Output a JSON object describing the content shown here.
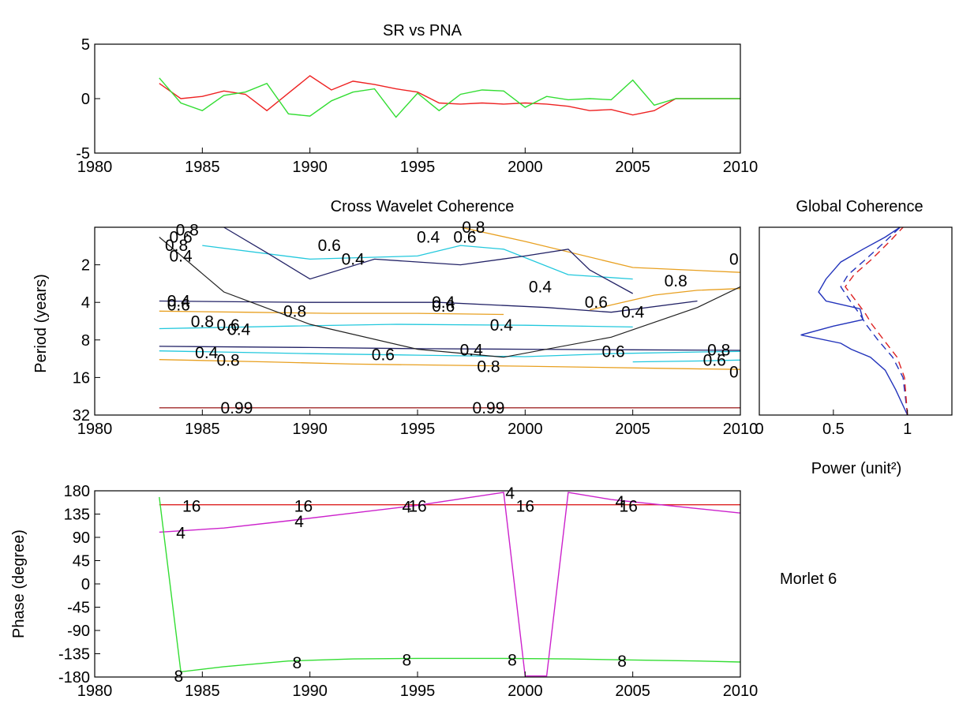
{
  "chart_data": [
    {
      "type": "line",
      "title": "SR vs PNA",
      "xlabel": "",
      "ylabel": "",
      "xlim": [
        1980,
        2010
      ],
      "ylim": [
        -5,
        5
      ],
      "xticks": [
        "1980",
        "1985",
        "1990",
        "1995",
        "2000",
        "2005",
        "2010"
      ],
      "yticks": [
        "-5",
        "0",
        "5"
      ],
      "grid": false,
      "series": [
        {
          "color": "#ee2222",
          "x": [
            1983,
            1984,
            1985,
            1986,
            1987,
            1988,
            1989,
            1990,
            1991,
            1992,
            1993,
            1994,
            1995,
            1996,
            1997,
            1998,
            1999,
            2000,
            2001,
            2002,
            2003,
            2004,
            2005,
            2006,
            2007,
            2008,
            2009,
            2010
          ],
          "y": [
            1.4,
            0.0,
            0.2,
            0.7,
            0.4,
            -1.1,
            0.5,
            2.1,
            0.8,
            1.6,
            1.3,
            0.9,
            0.6,
            -0.4,
            -0.5,
            -0.4,
            -0.5,
            -0.4,
            -0.5,
            -0.7,
            -1.1,
            -1.0,
            -1.5,
            -1.1,
            0.0,
            0.0,
            0.0,
            0.0
          ]
        },
        {
          "color": "#33dd33",
          "x": [
            1983,
            1984,
            1985,
            1986,
            1987,
            1988,
            1989,
            1990,
            1991,
            1992,
            1993,
            1994,
            1995,
            1996,
            1997,
            1998,
            1999,
            2000,
            2001,
            2002,
            2003,
            2004,
            2005,
            2006,
            2007,
            2008,
            2009,
            2010
          ],
          "y": [
            1.9,
            -0.4,
            -1.1,
            0.3,
            0.6,
            1.4,
            -1.4,
            -1.6,
            -0.2,
            0.6,
            0.9,
            -1.7,
            0.5,
            -1.1,
            0.4,
            0.8,
            0.7,
            -0.8,
            0.2,
            -0.1,
            0.0,
            -0.1,
            1.7,
            -0.6,
            0.0,
            0.0,
            0.0,
            0.0
          ]
        }
      ]
    },
    {
      "type": "contour",
      "title": "Cross Wavelet Coherence",
      "xlabel": "",
      "ylabel": "Period (years)",
      "xlim": [
        1980,
        2010
      ],
      "y_scale": "log2",
      "ylim": [
        1,
        32
      ],
      "xticks": [
        "1980",
        "1985",
        "1990",
        "1995",
        "2000",
        "2005",
        "2010"
      ],
      "yticks": [
        "2",
        "4",
        "8",
        "16",
        "32"
      ],
      "cone_of_influence": {
        "x": [
          1983,
          1986,
          1990,
          1995,
          1999,
          2004,
          2008,
          2010
        ],
        "y": [
          1.2,
          3.3,
          6.0,
          9.5,
          11.0,
          7.6,
          4.4,
          3.0
        ]
      },
      "contours": [
        {
          "level": "0.99",
          "color": "#a02828",
          "x": [
            1983,
            2010
          ],
          "y": [
            28,
            28
          ]
        },
        {
          "level": "0.8",
          "color": "#e8a020",
          "x": [
            1983,
            1988,
            1992,
            2000,
            2006,
            2010
          ],
          "y": [
            11.5,
            12.0,
            12.5,
            13.0,
            13.5,
            13.8
          ]
        },
        {
          "level": "0.6",
          "color": "#22c8dd",
          "x": [
            1983,
            1990,
            1995,
            2000,
            2004,
            2008,
            2010
          ],
          "y": [
            9.8,
            10.3,
            10.6,
            10.9,
            10.3,
            10.0,
            9.9
          ]
        },
        {
          "level": "0.4",
          "color": "#222266",
          "x": [
            1983,
            1990,
            1995,
            2000,
            2005,
            2010
          ],
          "y": [
            9.0,
            9.2,
            9.4,
            9.5,
            9.6,
            9.7
          ]
        },
        {
          "level": "0.8",
          "color": "#e8a020",
          "x": [
            1983,
            1987,
            1991,
            1995,
            1999
          ],
          "y": [
            4.7,
            4.8,
            4.9,
            4.9,
            5.0
          ]
        },
        {
          "level": "0.6",
          "color": "#22c8dd",
          "x": [
            1983,
            1989,
            1994,
            2000,
            2005
          ],
          "y": [
            6.5,
            6.2,
            6.0,
            6.1,
            6.3
          ]
        },
        {
          "level": "0.4",
          "color": "#222266",
          "x": [
            1983,
            1990,
            1996,
            2001,
            2004,
            2008
          ],
          "y": [
            3.9,
            4.0,
            4.0,
            4.4,
            4.8,
            3.9
          ]
        },
        {
          "level": "0.6",
          "color": "#22c8dd",
          "x": [
            1985,
            1990,
            1995,
            1997,
            1999,
            2002,
            2005
          ],
          "y": [
            1.4,
            1.8,
            1.7,
            1.4,
            1.5,
            2.4,
            2.6
          ]
        },
        {
          "level": "0.8",
          "color": "#e8a020",
          "x": [
            1997,
            2000,
            2005,
            2010
          ],
          "y": [
            1.0,
            1.3,
            2.1,
            2.3
          ]
        },
        {
          "level": "0.8",
          "color": "#e8a020",
          "x": [
            2003,
            2006,
            2008,
            2010
          ],
          "y": [
            4.6,
            3.5,
            3.2,
            3.1
          ]
        },
        {
          "level": "0.4",
          "color": "#222266",
          "x": [
            1986,
            1988,
            1990,
            1993,
            1997,
            2000,
            2002,
            2003,
            2005
          ],
          "y": [
            1.0,
            1.6,
            2.6,
            1.8,
            2.0,
            1.7,
            1.5,
            2.2,
            3.4
          ]
        },
        {
          "level": "0.6",
          "color": "#22c8dd",
          "x": [
            2005,
            2008,
            2010
          ],
          "y": [
            12.0,
            11.8,
            11.6
          ]
        }
      ],
      "contour_labels": [
        {
          "text": "0.99",
          "x": 1986.6,
          "y": 28
        },
        {
          "text": "0.99",
          "x": 1998.3,
          "y": 28
        },
        {
          "text": "0.8",
          "x": 1986.2,
          "y": 11.6
        },
        {
          "text": "0.8",
          "x": 1998.3,
          "y": 13.1
        },
        {
          "text": "0.6",
          "x": 1993.4,
          "y": 10.5
        },
        {
          "text": "0.6",
          "x": 2004.1,
          "y": 9.9
        },
        {
          "text": "0.6",
          "x": 2008.8,
          "y": 11.6
        },
        {
          "text": "0.8",
          "x": 2009.0,
          "y": 9.6
        },
        {
          "text": "0.4",
          "x": 1985.2,
          "y": 10.1
        },
        {
          "text": "0.4",
          "x": 1997.5,
          "y": 9.6
        },
        {
          "text": "0.4",
          "x": 1998.9,
          "y": 6.1
        },
        {
          "text": "0.8",
          "x": 1985.0,
          "y": 5.7
        },
        {
          "text": "0.6",
          "x": 1986.2,
          "y": 6.1
        },
        {
          "text": "0.4",
          "x": 1986.7,
          "y": 6.6
        },
        {
          "text": "0.8",
          "x": 1989.3,
          "y": 4.7
        },
        {
          "text": "0.4",
          "x": 1983.9,
          "y": 3.9
        },
        {
          "text": "0.6",
          "x": 1983.9,
          "y": 4.2
        },
        {
          "text": "0.4",
          "x": 1996.2,
          "y": 4.0
        },
        {
          "text": "0.6",
          "x": 1996.2,
          "y": 4.3
        },
        {
          "text": "0.6",
          "x": 2003.3,
          "y": 4.0
        },
        {
          "text": "0.4",
          "x": 2005.0,
          "y": 4.8
        },
        {
          "text": "0.4",
          "x": 2000.7,
          "y": 3.0
        },
        {
          "text": "0.8",
          "x": 2007.0,
          "y": 2.7
        },
        {
          "text": "0.4",
          "x": 1992.0,
          "y": 1.8
        },
        {
          "text": "0.6",
          "x": 1990.9,
          "y": 1.4
        },
        {
          "text": "0.4",
          "x": 1995.5,
          "y": 1.2
        },
        {
          "text": "0.6",
          "x": 1997.2,
          "y": 1.2
        },
        {
          "text": "0.8",
          "x": 1997.6,
          "y": 1.0
        },
        {
          "text": "0.8",
          "x": 1983.8,
          "y": 1.4
        },
        {
          "text": "0.6",
          "x": 1984.0,
          "y": 1.2
        },
        {
          "text": "0.4",
          "x": 1984.0,
          "y": 1.7
        },
        {
          "text": "0.8",
          "x": 1984.3,
          "y": 1.05
        },
        {
          "text": "0",
          "x": 2009.7,
          "y": 1.8
        },
        {
          "text": "0",
          "x": 2009.7,
          "y": 14.5
        }
      ]
    },
    {
      "type": "line",
      "title": "Global Coherence",
      "xlabel": "Power (unit²)",
      "ylabel": "",
      "xlim": [
        0,
        1.3
      ],
      "ylim": [
        1,
        32
      ],
      "y_scale": "log2",
      "xticks": [
        "0",
        "0.5",
        "1"
      ],
      "grid": false,
      "series": [
        {
          "color": "#2233bb",
          "dash": "solid",
          "x": [
            1.0,
            0.92,
            0.85,
            0.75,
            0.62,
            0.55,
            0.28,
            0.5,
            0.7,
            0.68,
            0.45,
            0.4,
            0.45,
            0.55,
            0.7,
            0.85,
            0.95
          ],
          "y": [
            32,
            20,
            14,
            11,
            9.5,
            8.5,
            7.3,
            6.2,
            5.5,
            4.5,
            3.9,
            3.3,
            2.6,
            1.9,
            1.5,
            1.2,
            1.0
          ]
        },
        {
          "color": "#2233bb",
          "dash": "dash",
          "x": [
            1.0,
            0.97,
            0.9,
            0.8,
            0.72,
            0.68,
            0.62,
            0.55,
            0.6,
            0.72,
            0.85,
            0.95
          ],
          "y": [
            32,
            16,
            11,
            8,
            6,
            5,
            4,
            3,
            2.4,
            1.8,
            1.3,
            1.0
          ]
        },
        {
          "color": "#dd2222",
          "dash": "dash",
          "x": [
            1.0,
            0.98,
            0.93,
            0.84,
            0.76,
            0.72,
            0.66,
            0.58,
            0.64,
            0.76,
            0.88,
            0.97
          ],
          "y": [
            32,
            16,
            11,
            8,
            6,
            5,
            4,
            3,
            2.4,
            1.8,
            1.3,
            1.0
          ]
        }
      ]
    },
    {
      "type": "line",
      "title": "",
      "xlabel": "",
      "ylabel": "Phase (degree)",
      "xlim": [
        1980,
        2010
      ],
      "ylim": [
        -180,
        180
      ],
      "xticks": [
        "1980",
        "1985",
        "1990",
        "1995",
        "2000",
        "2005",
        "2010"
      ],
      "yticks": [
        "180",
        "135",
        "90",
        "45",
        "0",
        "-45",
        "-90",
        "-135",
        "-180"
      ],
      "grid": false,
      "series": [
        {
          "color": "#dd2222",
          "x": [
            1983,
            2010
          ],
          "y": [
            153,
            153
          ]
        },
        {
          "color": "#cc22cc",
          "x": [
            1983,
            1986,
            1989,
            1992,
            1995,
            1999,
            2000,
            2001,
            2002,
            2004,
            2007,
            2010
          ],
          "y": [
            100,
            108,
            122,
            137,
            152,
            177,
            -178,
            -178,
            177,
            163,
            150,
            137
          ]
        },
        {
          "color": "#33dd33",
          "x": [
            1983,
            1984,
            1986,
            1989,
            1992,
            1995,
            1999,
            2002,
            2005,
            2008,
            2010
          ],
          "y": [
            168,
            -170,
            -160,
            -149,
            -145,
            -144,
            -144,
            -145,
            -147,
            -149,
            -151
          ]
        }
      ],
      "annotations": [
        {
          "text": "16",
          "x": 1984.5,
          "y": 152
        },
        {
          "text": "16",
          "x": 1989.7,
          "y": 152
        },
        {
          "text": "16",
          "x": 1995.0,
          "y": 152
        },
        {
          "text": "16",
          "x": 2000.0,
          "y": 152
        },
        {
          "text": "16",
          "x": 2004.8,
          "y": 152
        },
        {
          "text": "4",
          "x": 1984.0,
          "y": 100
        },
        {
          "text": "4",
          "x": 1989.5,
          "y": 122
        },
        {
          "text": "4",
          "x": 1994.5,
          "y": 150
        },
        {
          "text": "4",
          "x": 1999.3,
          "y": 177
        },
        {
          "text": "4",
          "x": 2004.4,
          "y": 160
        },
        {
          "text": "8",
          "x": 1983.9,
          "y": -177
        },
        {
          "text": "8",
          "x": 1989.4,
          "y": -151
        },
        {
          "text": "8",
          "x": 1994.5,
          "y": -146
        },
        {
          "text": "8",
          "x": 1999.4,
          "y": -146
        },
        {
          "text": "8",
          "x": 2004.5,
          "y": -148
        }
      ]
    }
  ],
  "side_text": "Morlet  6"
}
